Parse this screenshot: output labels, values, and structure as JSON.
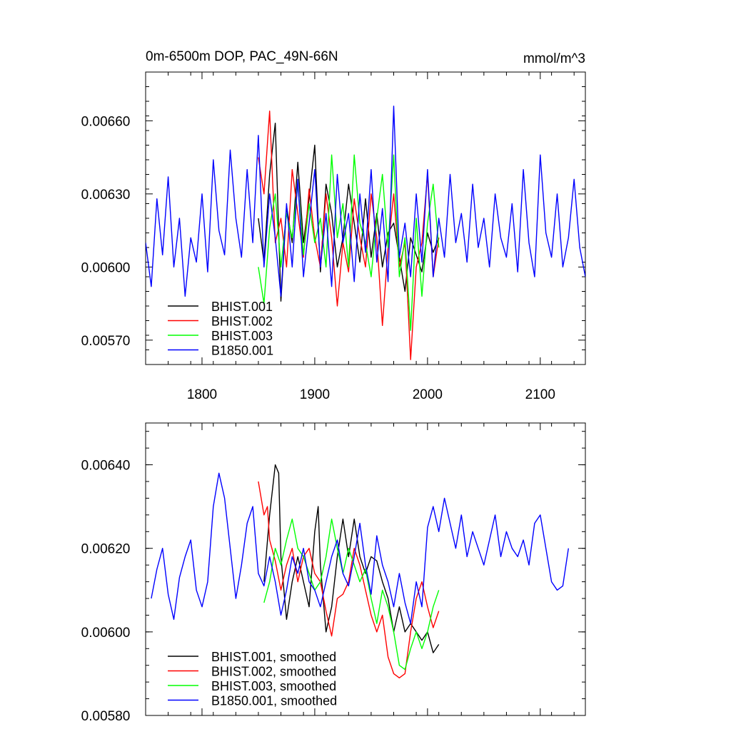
{
  "chart_data": [
    {
      "type": "line",
      "title": "0m-6500m DOP, PAC_49N-66N",
      "units_label": "mmol/m^3",
      "xlabel": "",
      "ylabel": "",
      "xlim": [
        1750,
        2140
      ],
      "ylim": [
        0.0056,
        0.0068
      ],
      "xticks": [
        1800,
        1900,
        2000,
        2100
      ],
      "xtick_labels": [
        "1800",
        "1900",
        "2000",
        "2100"
      ],
      "yticks": [
        0.0057,
        0.006,
        0.0063,
        0.0066
      ],
      "ytick_labels": [
        "0.00570",
        "0.00600",
        "0.00630",
        "0.00660"
      ],
      "legend_position": "bottom-left",
      "series": [
        {
          "name": "BHIST.001",
          "color": "#000000",
          "x": [
            1850,
            1855,
            1860,
            1865,
            1870,
            1875,
            1880,
            1885,
            1890,
            1895,
            1900,
            1905,
            1910,
            1915,
            1920,
            1925,
            1930,
            1935,
            1940,
            1945,
            1950,
            1955,
            1960,
            1965,
            1970,
            1975,
            1980,
            1985,
            1990,
            1995,
            2000,
            2005,
            2010
          ],
          "y": [
            0.0062,
            0.00602,
            0.00638,
            0.00659,
            0.00586,
            0.00625,
            0.0061,
            0.00643,
            0.0061,
            0.00628,
            0.0065,
            0.00598,
            0.00634,
            0.00622,
            0.006,
            0.00612,
            0.00634,
            0.00618,
            0.00602,
            0.00628,
            0.00604,
            0.00622,
            0.006,
            0.00614,
            0.00618,
            0.00604,
            0.0059,
            0.00612,
            0.00605,
            0.00598,
            0.00614,
            0.00606,
            0.00612
          ]
        },
        {
          "name": "BHIST.002",
          "color": "#ff0000",
          "x": [
            1850,
            1855,
            1860,
            1865,
            1870,
            1875,
            1880,
            1885,
            1890,
            1895,
            1900,
            1905,
            1910,
            1915,
            1920,
            1925,
            1930,
            1935,
            1940,
            1945,
            1950,
            1955,
            1960,
            1965,
            1970,
            1975,
            1980,
            1985,
            1990,
            1995,
            2000,
            2005,
            2010
          ],
          "y": [
            0.00645,
            0.0063,
            0.00664,
            0.0061,
            0.0062,
            0.006,
            0.0064,
            0.00622,
            0.00604,
            0.00632,
            0.00612,
            0.006,
            0.0063,
            0.00612,
            0.00584,
            0.0061,
            0.00598,
            0.00628,
            0.00612,
            0.006,
            0.0063,
            0.00612,
            0.00576,
            0.00608,
            0.0063,
            0.006,
            0.0061,
            0.00562,
            0.006,
            0.0061,
            0.00638,
            0.00596,
            0.00612
          ]
        },
        {
          "name": "BHIST.003",
          "color": "#00ff00",
          "x": [
            1850,
            1855,
            1860,
            1865,
            1870,
            1875,
            1880,
            1885,
            1890,
            1895,
            1900,
            1905,
            1910,
            1915,
            1920,
            1925,
            1930,
            1935,
            1940,
            1945,
            1950,
            1955,
            1960,
            1965,
            1970,
            1975,
            1980,
            1985,
            1990,
            1995,
            2000,
            2005,
            2010
          ],
          "y": [
            0.006,
            0.00585,
            0.00616,
            0.0063,
            0.006,
            0.00622,
            0.00612,
            0.00634,
            0.00605,
            0.00626,
            0.0061,
            0.0062,
            0.006,
            0.00646,
            0.00612,
            0.00626,
            0.006,
            0.00646,
            0.00618,
            0.0061,
            0.00596,
            0.0062,
            0.00638,
            0.00608,
            0.00646,
            0.00596,
            0.00612,
            0.00574,
            0.0062,
            0.00588,
            0.00618,
            0.00634,
            0.00608
          ]
        },
        {
          "name": "B1850.001",
          "color": "#0000ff",
          "x": [
            1750,
            1755,
            1760,
            1765,
            1770,
            1775,
            1780,
            1785,
            1790,
            1795,
            1800,
            1805,
            1810,
            1815,
            1820,
            1825,
            1830,
            1835,
            1840,
            1845,
            1850,
            1855,
            1860,
            1865,
            1870,
            1875,
            1880,
            1885,
            1890,
            1895,
            1900,
            1905,
            1910,
            1915,
            1920,
            1925,
            1930,
            1935,
            1940,
            1945,
            1950,
            1955,
            1960,
            1965,
            1970,
            1975,
            1980,
            1985,
            1990,
            1995,
            2000,
            2005,
            2010,
            2015,
            2020,
            2025,
            2030,
            2035,
            2040,
            2045,
            2050,
            2055,
            2060,
            2065,
            2070,
            2075,
            2080,
            2085,
            2090,
            2095,
            2100,
            2105,
            2110,
            2115,
            2120,
            2125,
            2130,
            2135,
            2140
          ],
          "y": [
            0.0061,
            0.00592,
            0.00628,
            0.00605,
            0.00637,
            0.006,
            0.0062,
            0.00588,
            0.00612,
            0.00602,
            0.0063,
            0.00598,
            0.00644,
            0.00615,
            0.00605,
            0.00648,
            0.0062,
            0.00604,
            0.0064,
            0.0061,
            0.00654,
            0.006,
            0.0063,
            0.00612,
            0.00588,
            0.00626,
            0.006,
            0.00636,
            0.00596,
            0.00618,
            0.0064,
            0.006,
            0.00622,
            0.00592,
            0.00638,
            0.0061,
            0.00622,
            0.00594,
            0.0063,
            0.00606,
            0.0064,
            0.00602,
            0.00624,
            0.00594,
            0.00666,
            0.00604,
            0.00618,
            0.00596,
            0.0063,
            0.00602,
            0.0064,
            0.00596,
            0.0062,
            0.00604,
            0.00638,
            0.0061,
            0.00622,
            0.00602,
            0.00634,
            0.00608,
            0.0062,
            0.006,
            0.0063,
            0.00612,
            0.00604,
            0.00626,
            0.00598,
            0.0064,
            0.0061,
            0.00596,
            0.00646,
            0.00614,
            0.00604,
            0.0063,
            0.006,
            0.00612,
            0.00636,
            0.00608,
            0.00596
          ]
        }
      ]
    },
    {
      "type": "line",
      "title": "",
      "xlabel": "",
      "ylabel": "",
      "xlim": [
        1750,
        2140
      ],
      "ylim": [
        0.0058,
        0.0065
      ],
      "xticks": [
        1800,
        1900,
        2000,
        2100
      ],
      "xtick_labels": [],
      "yticks": [
        0.0058,
        0.006,
        0.0062,
        0.0064
      ],
      "ytick_labels": [
        "0.00580",
        "0.00600",
        "0.00620",
        "0.00640"
      ],
      "legend_position": "bottom-left",
      "series": [
        {
          "name": "BHIST.001, smoothed",
          "color": "#000000",
          "x": [
            1855,
            1860,
            1865,
            1868,
            1870,
            1875,
            1880,
            1885,
            1890,
            1895,
            1900,
            1903,
            1905,
            1910,
            1915,
            1920,
            1925,
            1930,
            1935,
            1940,
            1945,
            1950,
            1955,
            1960,
            1965,
            1970,
            1975,
            1980,
            1985,
            1990,
            1995,
            2000,
            2005,
            2010
          ],
          "y": [
            0.00612,
            0.00628,
            0.0064,
            0.00638,
            0.00618,
            0.00603,
            0.00612,
            0.00618,
            0.00612,
            0.00606,
            0.00624,
            0.0063,
            0.00616,
            0.006,
            0.00606,
            0.00618,
            0.00627,
            0.00618,
            0.00627,
            0.00618,
            0.00614,
            0.00618,
            0.00617,
            0.00612,
            0.00608,
            0.006,
            0.00606,
            0.006,
            0.00602,
            0.006,
            0.00598,
            0.006,
            0.00595,
            0.00597
          ]
        },
        {
          "name": "BHIST.002, smoothed",
          "color": "#ff0000",
          "x": [
            1850,
            1855,
            1858,
            1860,
            1865,
            1870,
            1875,
            1880,
            1885,
            1890,
            1895,
            1900,
            1905,
            1910,
            1915,
            1920,
            1925,
            1930,
            1935,
            1940,
            1945,
            1950,
            1955,
            1960,
            1965,
            1970,
            1975,
            1980,
            1985,
            1990,
            1995,
            2000,
            2005,
            2010
          ],
          "y": [
            0.00636,
            0.00628,
            0.0063,
            0.00622,
            0.00617,
            0.0061,
            0.00616,
            0.0062,
            0.00612,
            0.00618,
            0.0062,
            0.00614,
            0.00612,
            0.00605,
            0.00599,
            0.00608,
            0.00609,
            0.00612,
            0.0062,
            0.00616,
            0.0061,
            0.00604,
            0.006,
            0.00604,
            0.00594,
            0.0059,
            0.00589,
            0.0059,
            0.006,
            0.00608,
            0.00612,
            0.00606,
            0.00601,
            0.00605
          ]
        },
        {
          "name": "BHIST.003, smoothed",
          "color": "#00ff00",
          "x": [
            1855,
            1860,
            1865,
            1870,
            1875,
            1880,
            1885,
            1890,
            1895,
            1900,
            1905,
            1910,
            1915,
            1920,
            1925,
            1930,
            1935,
            1940,
            1945,
            1950,
            1955,
            1960,
            1965,
            1970,
            1975,
            1980,
            1985,
            1990,
            1995,
            2000,
            2005,
            2010
          ],
          "y": [
            0.00607,
            0.00612,
            0.0062,
            0.00616,
            0.00622,
            0.00627,
            0.0062,
            0.00618,
            0.00614,
            0.0061,
            0.00612,
            0.00618,
            0.00627,
            0.0062,
            0.00614,
            0.0062,
            0.00616,
            0.00612,
            0.00615,
            0.00608,
            0.00602,
            0.0061,
            0.00606,
            0.006,
            0.00592,
            0.00591,
            0.00596,
            0.006,
            0.00596,
            0.006,
            0.00606,
            0.0061
          ]
        },
        {
          "name": "B1850.001, smoothed",
          "color": "#0000ff",
          "x": [
            1755,
            1760,
            1765,
            1770,
            1775,
            1780,
            1785,
            1790,
            1795,
            1800,
            1805,
            1810,
            1815,
            1820,
            1825,
            1830,
            1835,
            1840,
            1845,
            1850,
            1855,
            1860,
            1865,
            1870,
            1875,
            1880,
            1885,
            1890,
            1895,
            1900,
            1905,
            1910,
            1915,
            1920,
            1925,
            1930,
            1935,
            1940,
            1945,
            1950,
            1955,
            1960,
            1965,
            1970,
            1975,
            1980,
            1985,
            1990,
            1995,
            2000,
            2005,
            2010,
            2015,
            2020,
            2025,
            2030,
            2035,
            2040,
            2045,
            2050,
            2055,
            2060,
            2065,
            2070,
            2075,
            2080,
            2085,
            2090,
            2095,
            2100,
            2105,
            2110,
            2115,
            2120,
            2125
          ],
          "y": [
            0.00608,
            0.00615,
            0.0062,
            0.00609,
            0.00603,
            0.00613,
            0.00618,
            0.00622,
            0.0061,
            0.00606,
            0.00612,
            0.0063,
            0.00638,
            0.00632,
            0.0062,
            0.00608,
            0.00616,
            0.00626,
            0.0063,
            0.00614,
            0.00611,
            0.00618,
            0.00612,
            0.00604,
            0.0061,
            0.00618,
            0.00614,
            0.0062,
            0.00612,
            0.0061,
            0.00606,
            0.00612,
            0.00618,
            0.00622,
            0.00614,
            0.00611,
            0.00618,
            0.00626,
            0.00616,
            0.00609,
            0.00623,
            0.00616,
            0.00612,
            0.00606,
            0.00614,
            0.00607,
            0.00602,
            0.00612,
            0.00606,
            0.00625,
            0.0063,
            0.00624,
            0.00632,
            0.00626,
            0.0062,
            0.00628,
            0.00618,
            0.00624,
            0.0062,
            0.00616,
            0.00622,
            0.00628,
            0.00618,
            0.00624,
            0.0062,
            0.00618,
            0.00622,
            0.00616,
            0.00626,
            0.00628,
            0.0062,
            0.00612,
            0.0061,
            0.00611,
            0.0062
          ]
        }
      ]
    }
  ]
}
